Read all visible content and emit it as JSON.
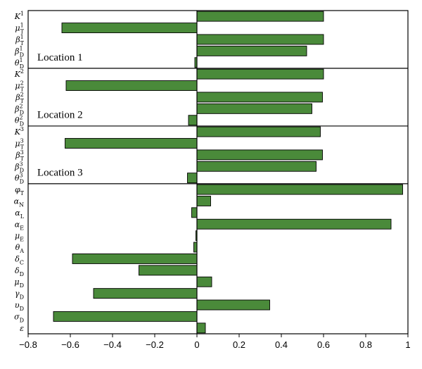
{
  "chart_data": {
    "type": "bar",
    "orientation": "horizontal",
    "xlim": [
      -0.8,
      1.0
    ],
    "xticks": [
      "−0.8",
      "−0.6",
      "−0.4",
      "−0.2",
      "0",
      "0.2",
      "0.4",
      "0.6",
      "0.8",
      "1"
    ],
    "xtick_values": [
      -0.8,
      -0.6,
      -0.4,
      -0.2,
      0,
      0.2,
      0.4,
      0.6,
      0.8,
      1.0
    ],
    "bar_color": "#4a8a3a",
    "bars": [
      {
        "base": "K",
        "sub": "",
        "sup": "1",
        "value": 0.6
      },
      {
        "base": "μ",
        "sub": "T",
        "sup": "1",
        "value": -0.64
      },
      {
        "base": "β",
        "sub": "T",
        "sup": "1",
        "value": 0.6
      },
      {
        "base": "β",
        "sub": "D",
        "sup": "1",
        "value": 0.52
      },
      {
        "base": "θ",
        "sub": "D",
        "sup": "1",
        "value": -0.01
      },
      {
        "base": "K",
        "sub": "",
        "sup": "2",
        "value": 0.6
      },
      {
        "base": "μ",
        "sub": "T",
        "sup": "2",
        "value": -0.62
      },
      {
        "base": "β",
        "sub": "T",
        "sup": "2",
        "value": 0.595
      },
      {
        "base": "β",
        "sub": "D",
        "sup": "2",
        "value": 0.545
      },
      {
        "base": "θ",
        "sub": "D",
        "sup": "2",
        "value": -0.04
      },
      {
        "base": "K",
        "sub": "",
        "sup": "3",
        "value": 0.585
      },
      {
        "base": "μ",
        "sub": "T",
        "sup": "3",
        "value": -0.625
      },
      {
        "base": "β",
        "sub": "T",
        "sup": "3",
        "value": 0.595
      },
      {
        "base": "β",
        "sub": "D",
        "sup": "3",
        "value": 0.565
      },
      {
        "base": "θ",
        "sub": "D",
        "sup": "3",
        "value": -0.045
      },
      {
        "base": "φ",
        "sub": "T",
        "sup": "",
        "value": 0.975
      },
      {
        "base": "α",
        "sub": "N",
        "sup": "",
        "value": 0.065
      },
      {
        "base": "α",
        "sub": "L",
        "sup": "",
        "value": -0.025
      },
      {
        "base": "α",
        "sub": "E",
        "sup": "",
        "value": 0.92
      },
      {
        "base": "μ",
        "sub": "E",
        "sup": "",
        "value": -0.005
      },
      {
        "base": "θ",
        "sub": "A",
        "sup": "",
        "value": -0.015
      },
      {
        "base": "δ",
        "sub": "C",
        "sup": "",
        "value": -0.59
      },
      {
        "base": "δ",
        "sub": "D",
        "sup": "",
        "value": -0.275
      },
      {
        "base": "μ",
        "sub": "D",
        "sup": "",
        "value": 0.07
      },
      {
        "base": "γ",
        "sub": "D",
        "sup": "",
        "value": -0.49
      },
      {
        "base": "υ",
        "sub": "D",
        "sup": "",
        "value": 0.345
      },
      {
        "base": "σ",
        "sub": "D",
        "sup": "",
        "value": -0.68
      },
      {
        "base": "ε",
        "sub": "",
        "sup": "",
        "value": 0.04
      }
    ],
    "groups": [
      {
        "label": "Location 1",
        "start": 0,
        "end": 4
      },
      {
        "label": "Location 2",
        "start": 5,
        "end": 9
      },
      {
        "label": "Location 3",
        "start": 10,
        "end": 14
      }
    ]
  }
}
